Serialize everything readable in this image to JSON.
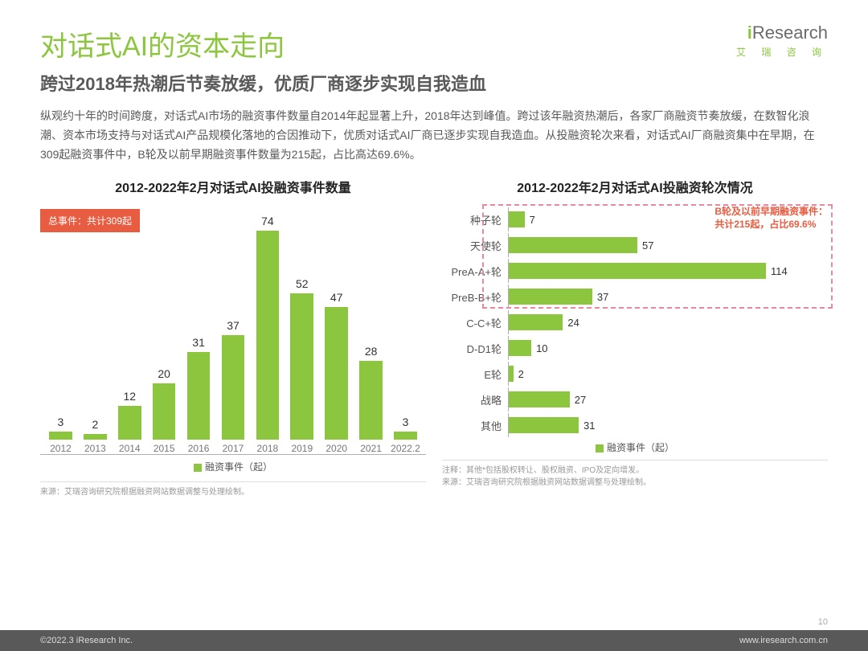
{
  "logo": {
    "main": "Research",
    "prefix": "i",
    "sub": "艾 瑞 咨 询"
  },
  "title": "对话式AI的资本走向",
  "subtitle": "跨过2018年热潮后节奏放缓，优质厂商逐步实现自我造血",
  "body": "纵观约十年的时间跨度，对话式AI市场的融资事件数量自2014年起显著上升，2018年达到峰值。跨过该年融资热潮后，各家厂商融资节奏放缓，在数智化浪潮、资本市场支持与对话式AI产品规模化落地的合因推动下，优质对话式AI厂商已逐步实现自我造血。从投融资轮次来看，对话式AI厂商融资集中在早期，在309起融资事件中，B轮及以前早期融资事件数量为215起，占比高达69.6%。",
  "left_chart": {
    "type": "bar",
    "title": "2012-2022年2月对话式AI投融资事件数量",
    "badge": "总事件：共计309起",
    "categories": [
      "2012",
      "2013",
      "2014",
      "2015",
      "2016",
      "2017",
      "2018",
      "2019",
      "2020",
      "2021",
      "2022.2"
    ],
    "values": [
      3,
      2,
      12,
      20,
      31,
      37,
      74,
      52,
      47,
      28,
      3
    ],
    "max": 74,
    "bar_color": "#8cc63f",
    "badge_bg": "#e85c41",
    "legend": "融资事件（起）"
  },
  "right_chart": {
    "type": "bar-horizontal",
    "title": "2012-2022年2月对话式AI投融资轮次情况",
    "badge_line1": "B轮及以前早期融资事件：",
    "badge_line2": "共计215起，占比69.6%",
    "categories": [
      "种子轮",
      "天使轮",
      "PreA-A+轮",
      "PreB-B+轮",
      "C-C+轮",
      "D-D1轮",
      "E轮",
      "战略",
      "其他"
    ],
    "values": [
      7,
      57,
      114,
      37,
      24,
      10,
      2,
      27,
      31
    ],
    "max": 114,
    "bar_color": "#8cc63f",
    "highlight_color": "#e85c41",
    "dash_color": "#e78aa0",
    "legend": "融资事件（起）",
    "highlight_rows": 4
  },
  "source_left": "来源：艾瑞咨询研究院根据融资网站数据调整与处理绘制。",
  "note_right": "注释：其他*包括股权转让、股权融资、IPO及定向增发。",
  "source_right": "来源：艾瑞咨询研究院根据融资网站数据调整与处理绘制。",
  "footer_left": "©2022.3 iResearch Inc.",
  "footer_right": "www.iresearch.com.cn",
  "page_number": "10",
  "colors": {
    "accent": "#8cc63f",
    "text_dark": "#595959",
    "badge": "#e85c41",
    "footer_bg": "#595959"
  }
}
